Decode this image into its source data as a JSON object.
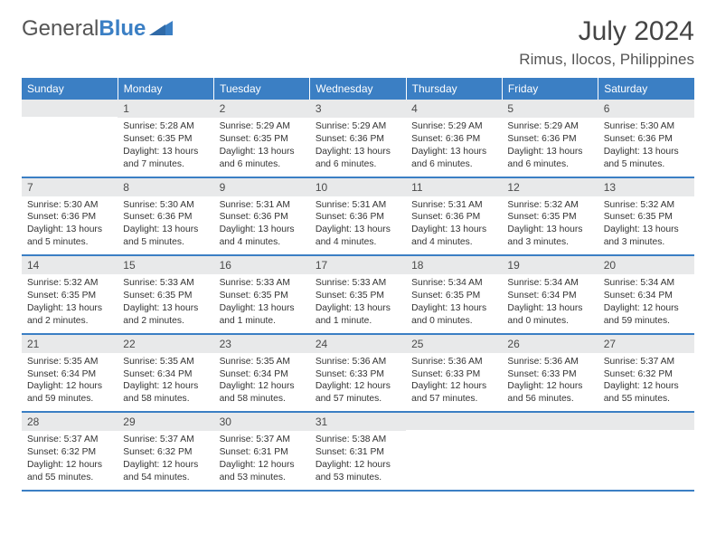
{
  "logo": {
    "text1": "General",
    "text2": "Blue",
    "color1": "#555555",
    "color2": "#3b7fc4"
  },
  "title": "July 2024",
  "location": "Rimus, Ilocos, Philippines",
  "dow": [
    "Sunday",
    "Monday",
    "Tuesday",
    "Wednesday",
    "Thursday",
    "Friday",
    "Saturday"
  ],
  "header_bg": "#3b7fc4",
  "daynum_bg": "#e8e9ea",
  "border_color": "#3b7fc4",
  "weeks": [
    [
      {
        "n": "",
        "l1": "",
        "l2": "",
        "l3": "",
        "l4": ""
      },
      {
        "n": "1",
        "l1": "Sunrise: 5:28 AM",
        "l2": "Sunset: 6:35 PM",
        "l3": "Daylight: 13 hours",
        "l4": "and 7 minutes."
      },
      {
        "n": "2",
        "l1": "Sunrise: 5:29 AM",
        "l2": "Sunset: 6:35 PM",
        "l3": "Daylight: 13 hours",
        "l4": "and 6 minutes."
      },
      {
        "n": "3",
        "l1": "Sunrise: 5:29 AM",
        "l2": "Sunset: 6:36 PM",
        "l3": "Daylight: 13 hours",
        "l4": "and 6 minutes."
      },
      {
        "n": "4",
        "l1": "Sunrise: 5:29 AM",
        "l2": "Sunset: 6:36 PM",
        "l3": "Daylight: 13 hours",
        "l4": "and 6 minutes."
      },
      {
        "n": "5",
        "l1": "Sunrise: 5:29 AM",
        "l2": "Sunset: 6:36 PM",
        "l3": "Daylight: 13 hours",
        "l4": "and 6 minutes."
      },
      {
        "n": "6",
        "l1": "Sunrise: 5:30 AM",
        "l2": "Sunset: 6:36 PM",
        "l3": "Daylight: 13 hours",
        "l4": "and 5 minutes."
      }
    ],
    [
      {
        "n": "7",
        "l1": "Sunrise: 5:30 AM",
        "l2": "Sunset: 6:36 PM",
        "l3": "Daylight: 13 hours",
        "l4": "and 5 minutes."
      },
      {
        "n": "8",
        "l1": "Sunrise: 5:30 AM",
        "l2": "Sunset: 6:36 PM",
        "l3": "Daylight: 13 hours",
        "l4": "and 5 minutes."
      },
      {
        "n": "9",
        "l1": "Sunrise: 5:31 AM",
        "l2": "Sunset: 6:36 PM",
        "l3": "Daylight: 13 hours",
        "l4": "and 4 minutes."
      },
      {
        "n": "10",
        "l1": "Sunrise: 5:31 AM",
        "l2": "Sunset: 6:36 PM",
        "l3": "Daylight: 13 hours",
        "l4": "and 4 minutes."
      },
      {
        "n": "11",
        "l1": "Sunrise: 5:31 AM",
        "l2": "Sunset: 6:36 PM",
        "l3": "Daylight: 13 hours",
        "l4": "and 4 minutes."
      },
      {
        "n": "12",
        "l1": "Sunrise: 5:32 AM",
        "l2": "Sunset: 6:35 PM",
        "l3": "Daylight: 13 hours",
        "l4": "and 3 minutes."
      },
      {
        "n": "13",
        "l1": "Sunrise: 5:32 AM",
        "l2": "Sunset: 6:35 PM",
        "l3": "Daylight: 13 hours",
        "l4": "and 3 minutes."
      }
    ],
    [
      {
        "n": "14",
        "l1": "Sunrise: 5:32 AM",
        "l2": "Sunset: 6:35 PM",
        "l3": "Daylight: 13 hours",
        "l4": "and 2 minutes."
      },
      {
        "n": "15",
        "l1": "Sunrise: 5:33 AM",
        "l2": "Sunset: 6:35 PM",
        "l3": "Daylight: 13 hours",
        "l4": "and 2 minutes."
      },
      {
        "n": "16",
        "l1": "Sunrise: 5:33 AM",
        "l2": "Sunset: 6:35 PM",
        "l3": "Daylight: 13 hours",
        "l4": "and 1 minute."
      },
      {
        "n": "17",
        "l1": "Sunrise: 5:33 AM",
        "l2": "Sunset: 6:35 PM",
        "l3": "Daylight: 13 hours",
        "l4": "and 1 minute."
      },
      {
        "n": "18",
        "l1": "Sunrise: 5:34 AM",
        "l2": "Sunset: 6:35 PM",
        "l3": "Daylight: 13 hours",
        "l4": "and 0 minutes."
      },
      {
        "n": "19",
        "l1": "Sunrise: 5:34 AM",
        "l2": "Sunset: 6:34 PM",
        "l3": "Daylight: 13 hours",
        "l4": "and 0 minutes."
      },
      {
        "n": "20",
        "l1": "Sunrise: 5:34 AM",
        "l2": "Sunset: 6:34 PM",
        "l3": "Daylight: 12 hours",
        "l4": "and 59 minutes."
      }
    ],
    [
      {
        "n": "21",
        "l1": "Sunrise: 5:35 AM",
        "l2": "Sunset: 6:34 PM",
        "l3": "Daylight: 12 hours",
        "l4": "and 59 minutes."
      },
      {
        "n": "22",
        "l1": "Sunrise: 5:35 AM",
        "l2": "Sunset: 6:34 PM",
        "l3": "Daylight: 12 hours",
        "l4": "and 58 minutes."
      },
      {
        "n": "23",
        "l1": "Sunrise: 5:35 AM",
        "l2": "Sunset: 6:34 PM",
        "l3": "Daylight: 12 hours",
        "l4": "and 58 minutes."
      },
      {
        "n": "24",
        "l1": "Sunrise: 5:36 AM",
        "l2": "Sunset: 6:33 PM",
        "l3": "Daylight: 12 hours",
        "l4": "and 57 minutes."
      },
      {
        "n": "25",
        "l1": "Sunrise: 5:36 AM",
        "l2": "Sunset: 6:33 PM",
        "l3": "Daylight: 12 hours",
        "l4": "and 57 minutes."
      },
      {
        "n": "26",
        "l1": "Sunrise: 5:36 AM",
        "l2": "Sunset: 6:33 PM",
        "l3": "Daylight: 12 hours",
        "l4": "and 56 minutes."
      },
      {
        "n": "27",
        "l1": "Sunrise: 5:37 AM",
        "l2": "Sunset: 6:32 PM",
        "l3": "Daylight: 12 hours",
        "l4": "and 55 minutes."
      }
    ],
    [
      {
        "n": "28",
        "l1": "Sunrise: 5:37 AM",
        "l2": "Sunset: 6:32 PM",
        "l3": "Daylight: 12 hours",
        "l4": "and 55 minutes."
      },
      {
        "n": "29",
        "l1": "Sunrise: 5:37 AM",
        "l2": "Sunset: 6:32 PM",
        "l3": "Daylight: 12 hours",
        "l4": "and 54 minutes."
      },
      {
        "n": "30",
        "l1": "Sunrise: 5:37 AM",
        "l2": "Sunset: 6:31 PM",
        "l3": "Daylight: 12 hours",
        "l4": "and 53 minutes."
      },
      {
        "n": "31",
        "l1": "Sunrise: 5:38 AM",
        "l2": "Sunset: 6:31 PM",
        "l3": "Daylight: 12 hours",
        "l4": "and 53 minutes."
      },
      {
        "n": "",
        "l1": "",
        "l2": "",
        "l3": "",
        "l4": ""
      },
      {
        "n": "",
        "l1": "",
        "l2": "",
        "l3": "",
        "l4": ""
      },
      {
        "n": "",
        "l1": "",
        "l2": "",
        "l3": "",
        "l4": ""
      }
    ]
  ]
}
